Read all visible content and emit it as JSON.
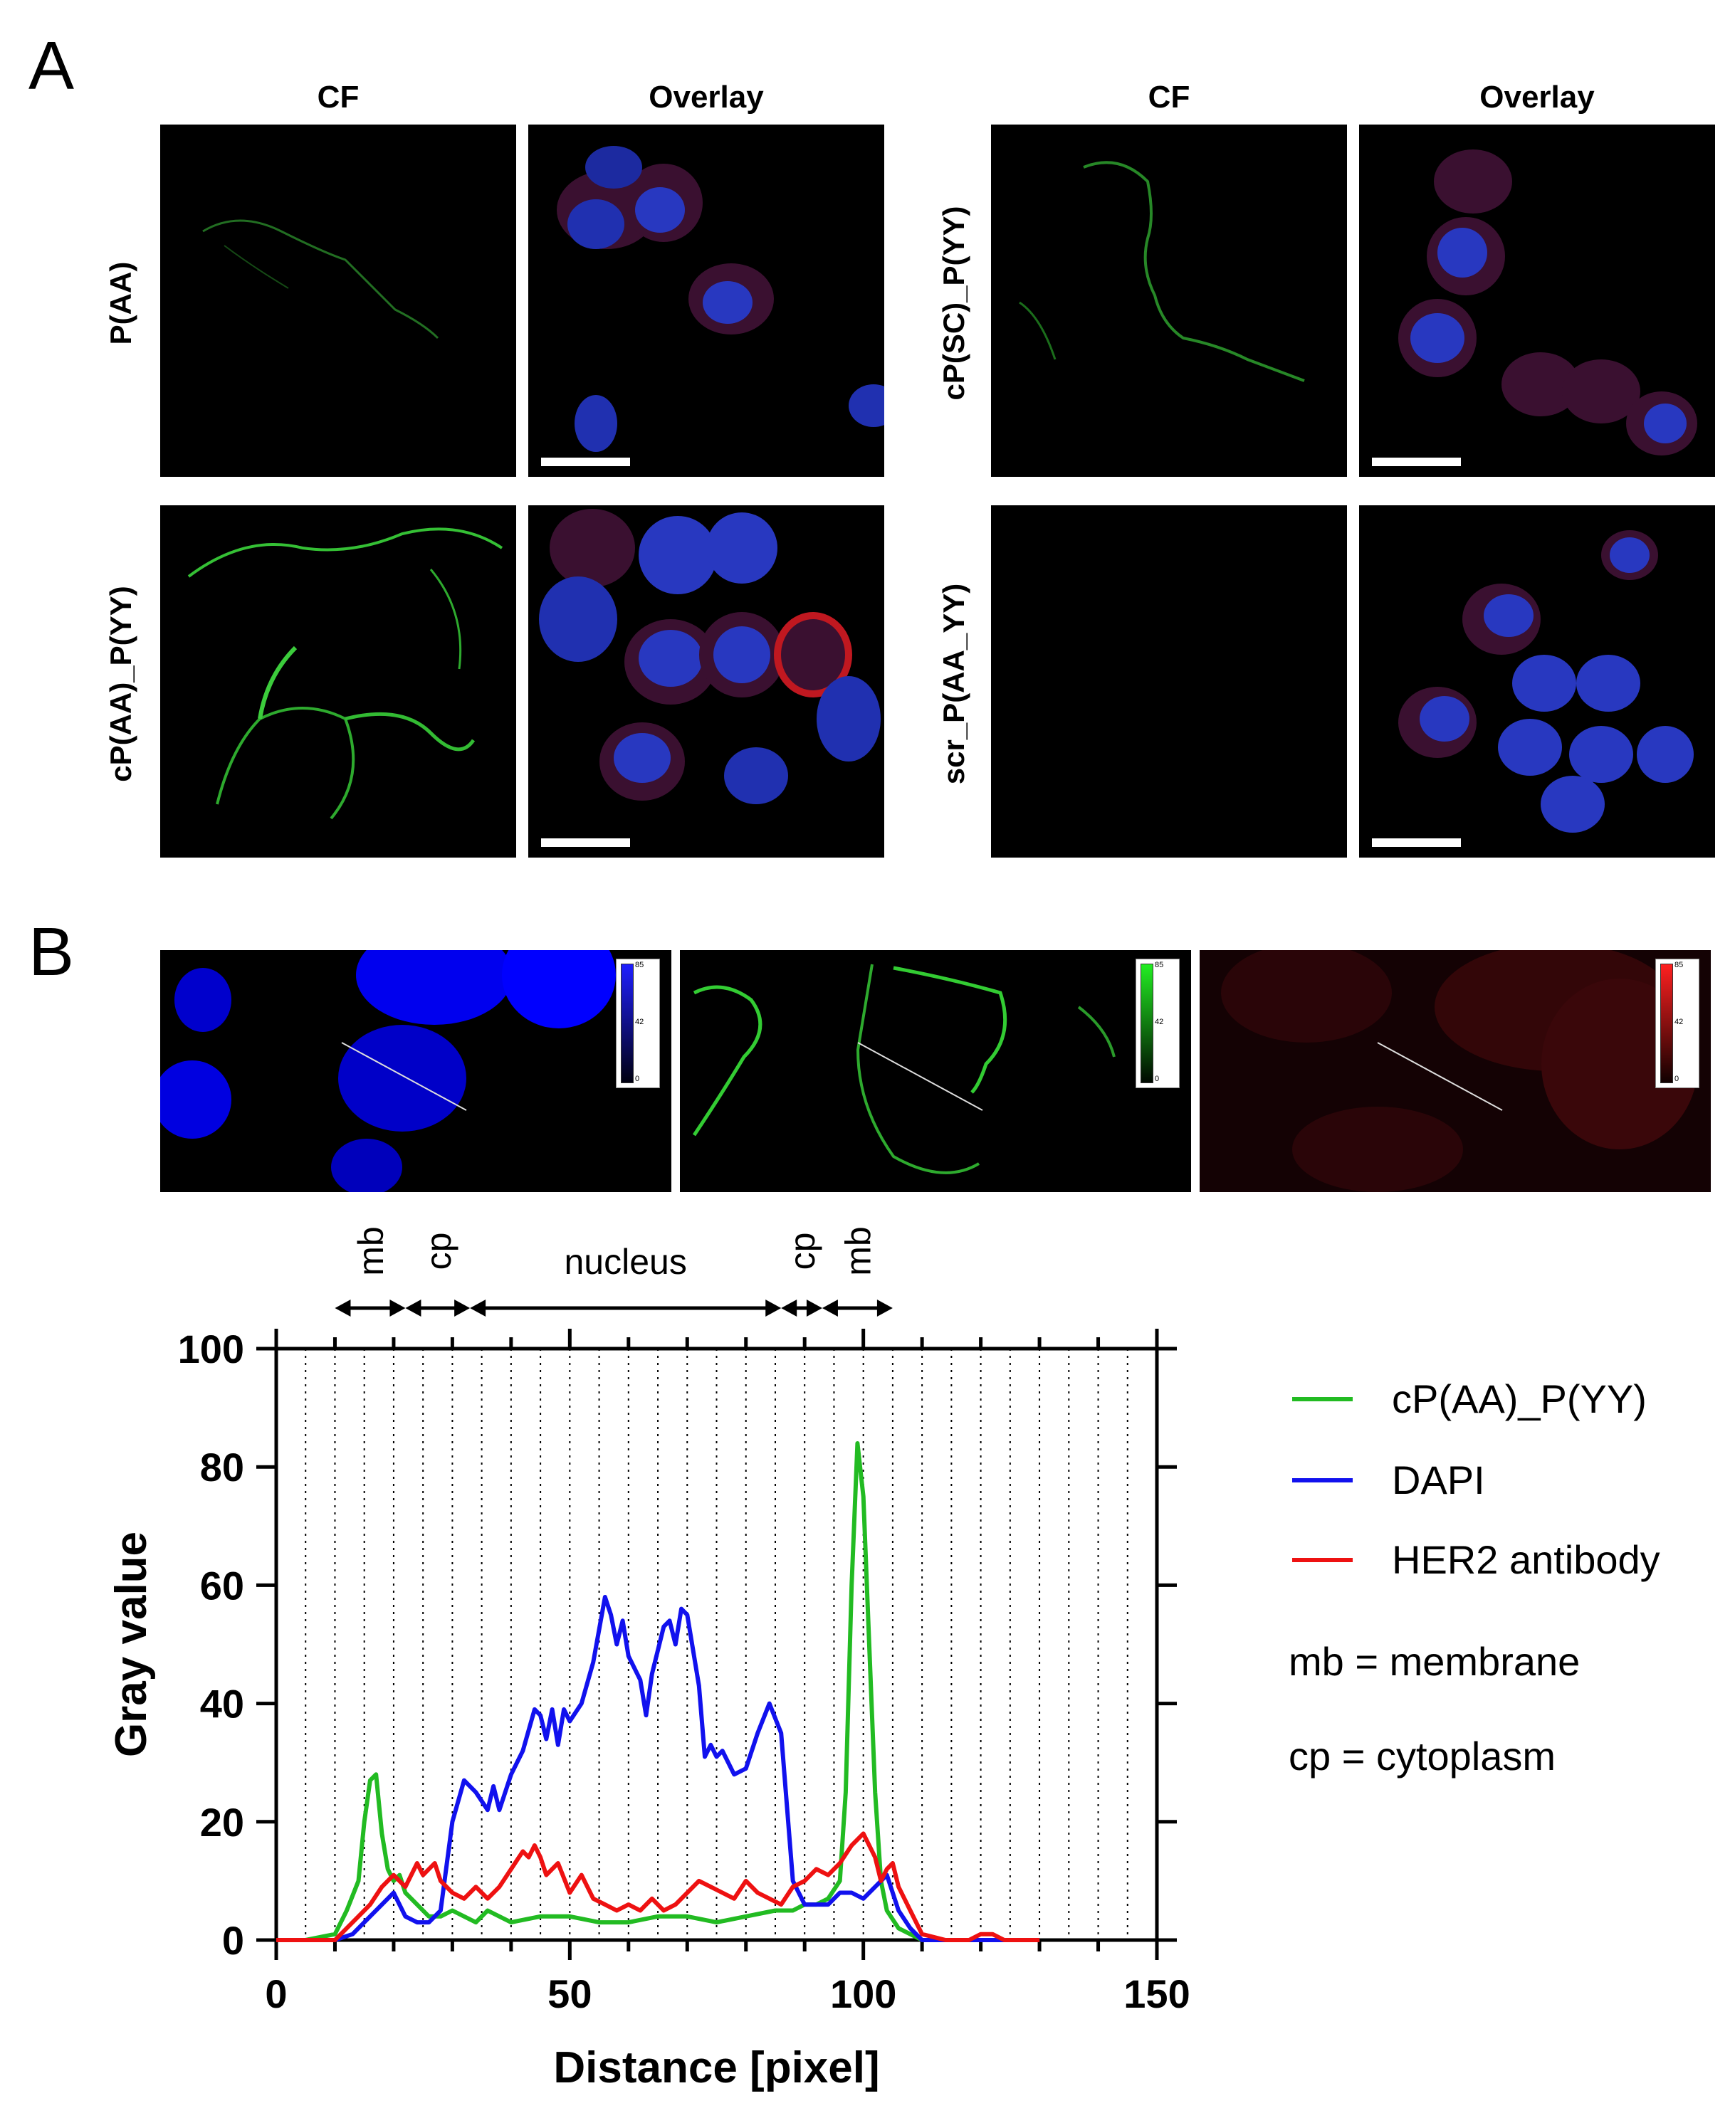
{
  "panel_a": {
    "letter": "A",
    "col_headers": [
      "CF",
      "Overlay",
      "CF",
      "Overlay"
    ],
    "rows": [
      {
        "label": "P(AA)",
        "side": "left"
      },
      {
        "label": "cP(SC)_P(YY)",
        "side": "right"
      },
      {
        "label": "cP(AA)_P(YY)",
        "side": "left"
      },
      {
        "label": "scr_P(AA_YY)",
        "side": "right"
      }
    ]
  },
  "panel_b": {
    "letter": "B",
    "colorbar_ticks": [
      "85",
      "42",
      "0"
    ],
    "channel_colors": {
      "dapi": "#1f1fff",
      "cf": "#22cc22",
      "her2": "#dd1111"
    }
  },
  "annotations": {
    "regions": [
      {
        "label": "mb",
        "from": 10,
        "to": 22,
        "rotated": true
      },
      {
        "label": "cp",
        "from": 22,
        "to": 33,
        "rotated": true
      },
      {
        "label": "nucleus",
        "from": 33,
        "to": 86,
        "rotated": false
      },
      {
        "label": "cp",
        "from": 86,
        "to": 93,
        "rotated": true
      },
      {
        "label": "mb",
        "from": 93,
        "to": 105,
        "rotated": true
      }
    ]
  },
  "legend": {
    "items": [
      {
        "label": "cP(AA)_P(YY)",
        "color": "#22bb22"
      },
      {
        "label": "DAPI",
        "color": "#1111ee"
      },
      {
        "label": "HER2 antibody",
        "color": "#ee1111"
      }
    ],
    "notes": [
      "mb = membrane",
      "cp = cytoplasm"
    ]
  },
  "chart_data": {
    "type": "line",
    "xlabel": "Distance [pixel]",
    "ylabel": "Gray value",
    "xlim": [
      0,
      150
    ],
    "ylim": [
      0,
      100
    ],
    "xticks": [
      0,
      50,
      100,
      150
    ],
    "yticks": [
      0,
      20,
      40,
      60,
      80,
      100
    ],
    "grid": "vertical dotted",
    "legend_position": "right",
    "series": [
      {
        "name": "cP(AA)_P(YY)",
        "color": "#22bb22",
        "x": [
          0,
          5,
          10,
          12,
          14,
          15,
          16,
          17,
          18,
          19,
          20,
          21,
          22,
          24,
          26,
          28,
          30,
          32,
          34,
          36,
          38,
          40,
          45,
          50,
          55,
          60,
          65,
          70,
          75,
          80,
          85,
          88,
          90,
          92,
          94,
          96,
          97,
          98,
          99,
          100,
          101,
          102,
          103,
          104,
          106,
          108,
          110,
          115,
          120,
          130
        ],
        "y": [
          0,
          0,
          1,
          5,
          10,
          20,
          27,
          28,
          18,
          12,
          10,
          11,
          8,
          6,
          4,
          4,
          5,
          4,
          3,
          5,
          4,
          3,
          4,
          4,
          3,
          3,
          4,
          4,
          3,
          4,
          5,
          5,
          6,
          6,
          7,
          10,
          25,
          60,
          84,
          75,
          50,
          25,
          10,
          5,
          2,
          1,
          0,
          0,
          0,
          0
        ]
      },
      {
        "name": "DAPI",
        "color": "#1111ee",
        "x": [
          0,
          5,
          10,
          13,
          16,
          18,
          20,
          22,
          24,
          26,
          28,
          30,
          32,
          34,
          36,
          37,
          38,
          40,
          42,
          44,
          45,
          46,
          47,
          48,
          49,
          50,
          52,
          54,
          56,
          57,
          58,
          59,
          60,
          62,
          63,
          64,
          66,
          67,
          68,
          69,
          70,
          72,
          73,
          74,
          75,
          76,
          78,
          80,
          82,
          84,
          86,
          88,
          90,
          92,
          94,
          96,
          98,
          100,
          102,
          104,
          106,
          108,
          110,
          120,
          130
        ],
        "y": [
          0,
          0,
          0,
          1,
          4,
          6,
          8,
          4,
          3,
          3,
          5,
          20,
          27,
          25,
          22,
          26,
          22,
          28,
          32,
          39,
          38,
          34,
          39,
          33,
          39,
          37,
          40,
          47,
          58,
          55,
          50,
          54,
          48,
          44,
          38,
          45,
          53,
          54,
          50,
          56,
          55,
          43,
          31,
          33,
          31,
          32,
          28,
          29,
          35,
          40,
          35,
          10,
          6,
          6,
          6,
          8,
          8,
          7,
          9,
          11,
          5,
          2,
          0,
          0,
          0
        ]
      },
      {
        "name": "HER2 antibody",
        "color": "#ee1111",
        "x": [
          0,
          5,
          10,
          12,
          14,
          16,
          18,
          20,
          22,
          24,
          25,
          26,
          27,
          28,
          30,
          32,
          34,
          36,
          38,
          40,
          42,
          43,
          44,
          45,
          46,
          48,
          50,
          52,
          54,
          56,
          58,
          60,
          62,
          64,
          66,
          68,
          70,
          72,
          74,
          76,
          78,
          80,
          82,
          84,
          86,
          88,
          90,
          92,
          94,
          96,
          98,
          100,
          102,
          103,
          104,
          105,
          106,
          108,
          110,
          114,
          118,
          120,
          122,
          124,
          128,
          130
        ],
        "y": [
          0,
          0,
          0,
          2,
          4,
          6,
          9,
          11,
          9,
          13,
          11,
          12,
          13,
          10,
          8,
          7,
          9,
          7,
          9,
          12,
          15,
          14,
          16,
          14,
          11,
          13,
          8,
          11,
          7,
          6,
          5,
          6,
          5,
          7,
          5,
          6,
          8,
          10,
          9,
          8,
          7,
          10,
          8,
          7,
          6,
          9,
          10,
          12,
          11,
          13,
          16,
          18,
          14,
          10,
          12,
          13,
          9,
          5,
          1,
          0,
          0,
          1,
          1,
          0,
          0,
          0
        ]
      }
    ]
  }
}
